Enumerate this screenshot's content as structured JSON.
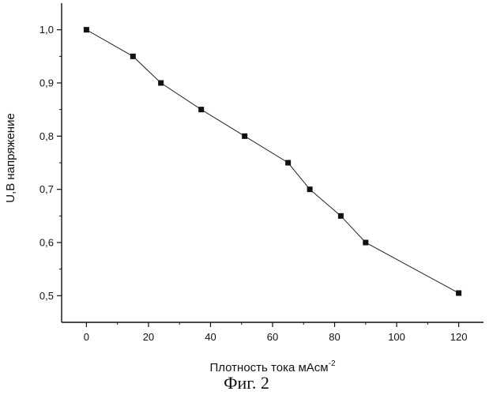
{
  "chart_data": {
    "type": "line",
    "xlabel": "Плотность тока мАсм",
    "xlabel_sup": "-2",
    "ylabel": "U,B напряжение",
    "caption": "Фиг. 2",
    "xlim": [
      -8,
      128
    ],
    "ylim": [
      0.45,
      1.05
    ],
    "x_ticks": [
      0,
      20,
      40,
      60,
      80,
      100,
      120
    ],
    "x_tick_labels": [
      "0",
      "20",
      "40",
      "60",
      "80",
      "100",
      "120"
    ],
    "y_ticks": [
      0.5,
      0.6,
      0.7,
      0.8,
      0.9,
      1.0
    ],
    "y_tick_labels": [
      "0,5",
      "0,6",
      "0,7",
      "0,8",
      "0,9",
      "1,0"
    ],
    "grid": false,
    "series": [
      {
        "x": [
          0,
          15,
          24,
          37,
          51,
          65,
          72,
          82,
          90,
          120
        ],
        "y": [
          1.0,
          0.95,
          0.9,
          0.85,
          0.8,
          0.75,
          0.7,
          0.65,
          0.6,
          0.505
        ]
      }
    ],
    "colors": {
      "line": "#222222",
      "marker": "#111111",
      "axis": "#111111"
    }
  }
}
